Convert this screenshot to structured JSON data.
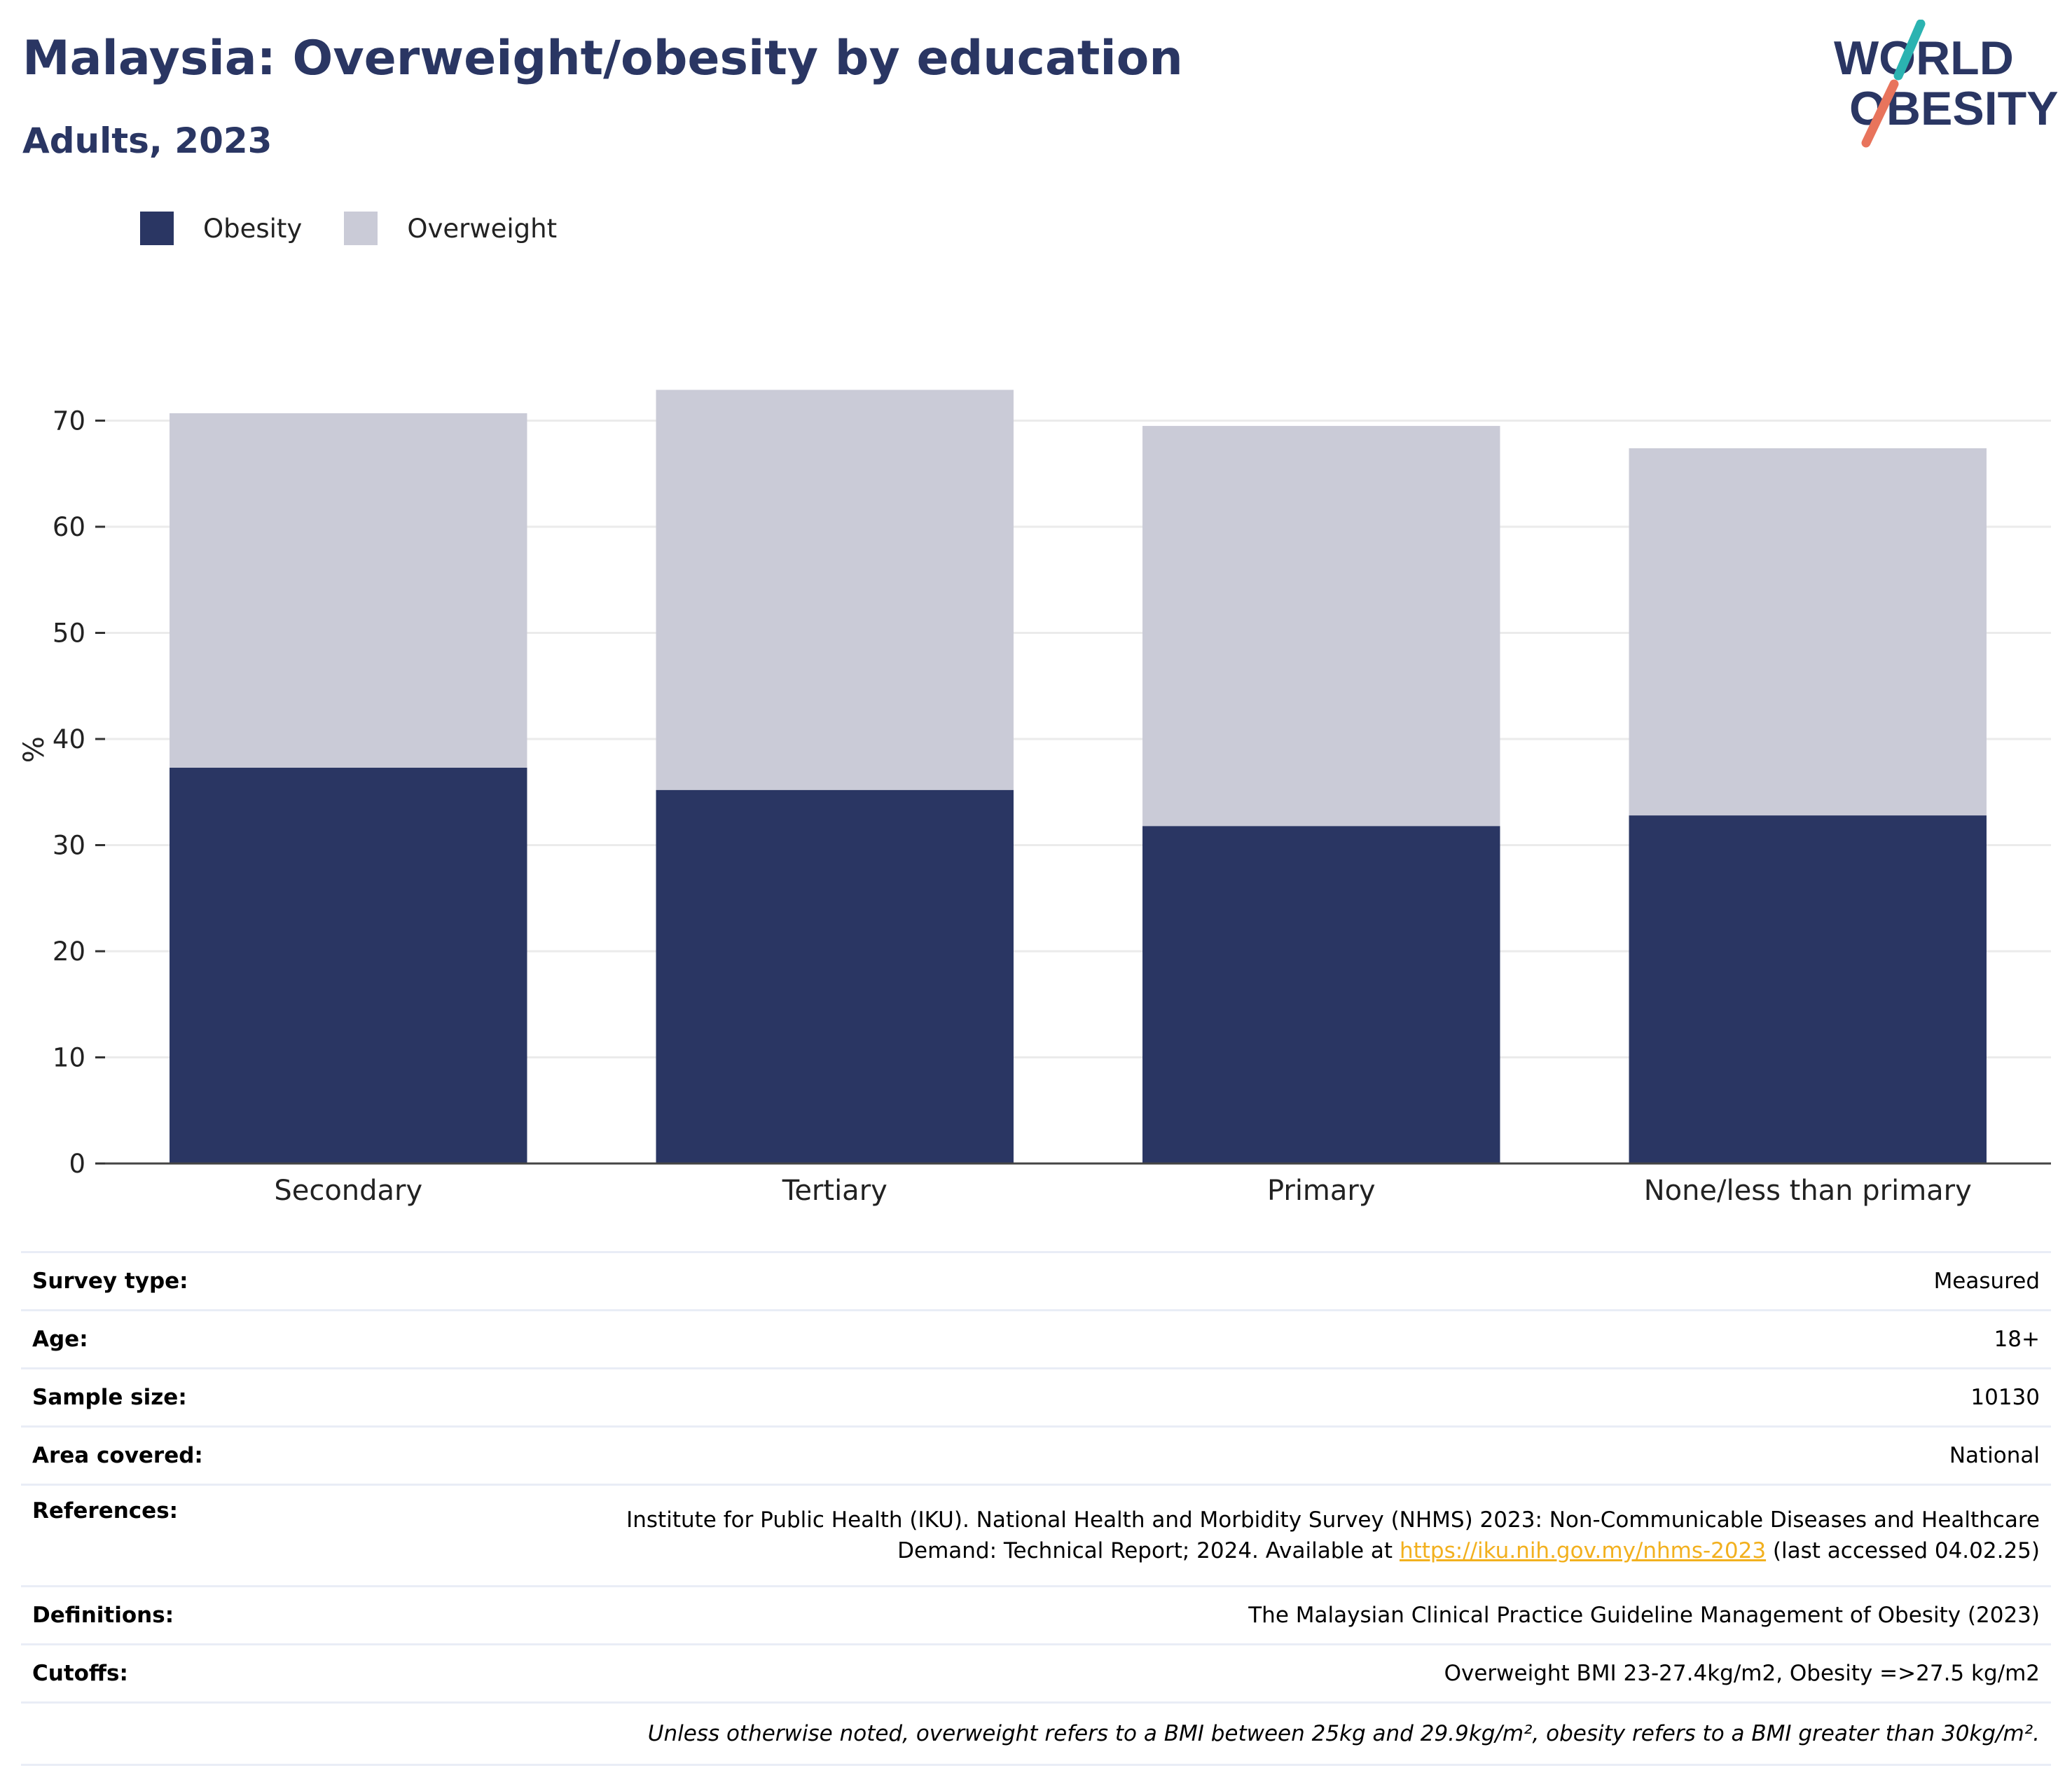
{
  "title": "Malaysia: Overweight/obesity by education",
  "subtitle": "Adults, 2023",
  "logo": {
    "line1": "WORLD",
    "line2": "OBESITY",
    "accent_teal": "#2bb3b1",
    "accent_coral": "#e8745c",
    "text_color": "#2a3663"
  },
  "legend": [
    {
      "label": "Obesity",
      "color": "#2a3663"
    },
    {
      "label": "Overweight",
      "color": "#cacbd7"
    }
  ],
  "chart_data": {
    "type": "bar",
    "stacked": true,
    "categories": [
      "Secondary",
      "Tertiary",
      "Primary",
      "None/less than primary"
    ],
    "series": [
      {
        "name": "Obesity",
        "color": "#2a3663",
        "values": [
          37.3,
          35.2,
          31.8,
          32.8
        ]
      },
      {
        "name": "Overweight",
        "color": "#cacbd7",
        "values": [
          33.4,
          37.7,
          37.7,
          34.6
        ]
      }
    ],
    "totals": [
      70.7,
      72.9,
      69.5,
      67.4
    ],
    "ylabel": "%",
    "ylim": [
      0,
      75
    ],
    "yticks": [
      0,
      10,
      20,
      30,
      40,
      50,
      60,
      70
    ],
    "grid": true,
    "legend_position": "top-left"
  },
  "info": [
    {
      "label": "Survey type:",
      "value": "Measured"
    },
    {
      "label": "Age:",
      "value": "18+"
    },
    {
      "label": "Sample size:",
      "value": "10130"
    },
    {
      "label": "Area covered:",
      "value": "National"
    },
    {
      "label": "References:",
      "value_line1": "Institute for Public Health (IKU). National Health and Morbidity Survey (NHMS) 2023: Non-Communicable Diseases and Healthcare",
      "value_line2_pre": "Demand: Technical Report; 2024. Available at ",
      "link": "https://iku.nih.gov.my/nhms-2023",
      "value_line2_post": " (last accessed 04.02.25)"
    },
    {
      "label": "Definitions:",
      "value": "The Malaysian Clinical Practice Guideline Management of Obesity (2023)"
    },
    {
      "label": "Cutoffs:",
      "value": "Overweight BMI 23-27.4kg/m2, Obesity =>27.5 kg/m2"
    }
  ],
  "note": "Unless otherwise noted, overweight refers to a BMI between 25kg and 29.9kg/m², obesity refers to a BMI greater than 30kg/m²."
}
